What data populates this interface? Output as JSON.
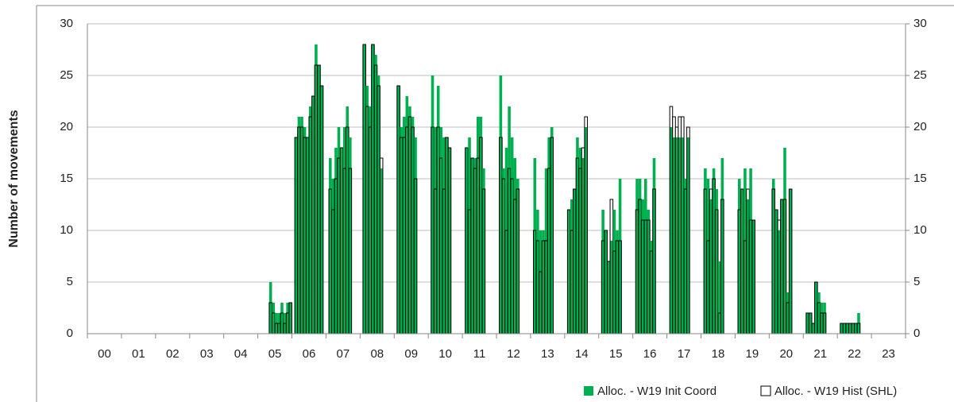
{
  "chart_data": {
    "type": "bar",
    "y_label": "Number of movements",
    "categories": [
      "00",
      "01",
      "02",
      "03",
      "04",
      "05",
      "06",
      "07",
      "08",
      "09",
      "10",
      "11",
      "12",
      "13",
      "14",
      "15",
      "16",
      "17",
      "18",
      "19",
      "20",
      "21",
      "22",
      "23"
    ],
    "ylim": [
      0,
      30
    ],
    "yticks": [
      0,
      5,
      10,
      15,
      20,
      25,
      30
    ],
    "y2lim": [
      0,
      30
    ],
    "y2ticks": [
      0,
      5,
      10,
      15,
      20,
      25,
      30
    ],
    "grid": true,
    "series": [
      {
        "name": "Alloc. - W19 Init Coord",
        "color": "#00b050",
        "values": [
          [
            0,
            0,
            0,
            0,
            0,
            0,
            0,
            0,
            0,
            0,
            0,
            0
          ],
          [
            0,
            0,
            0,
            0,
            0,
            0,
            0,
            0,
            0,
            0,
            0,
            0
          ],
          [
            0,
            0,
            0,
            0,
            0,
            0,
            0,
            0,
            0,
            0,
            0,
            0
          ],
          [
            0,
            0,
            0,
            0,
            0,
            0,
            0,
            0,
            0,
            0,
            0,
            0
          ],
          [
            0,
            0,
            0,
            0,
            0,
            0,
            0,
            0,
            0,
            0,
            0,
            0
          ],
          [
            0,
            0,
            0,
            0,
            5,
            3,
            2,
            2,
            3,
            2,
            3,
            3
          ],
          [
            0,
            19,
            21,
            21,
            20,
            19,
            22,
            23,
            28,
            26,
            24,
            0
          ],
          [
            0,
            17,
            15,
            18,
            20,
            18,
            20,
            22,
            19,
            0,
            0,
            0
          ],
          [
            0,
            28,
            24,
            22,
            28,
            27,
            25,
            16,
            0,
            0,
            0,
            0
          ],
          [
            0,
            24,
            20,
            21,
            23,
            22,
            21,
            19,
            0,
            0,
            0,
            0
          ],
          [
            0,
            25,
            20,
            24,
            20,
            19,
            19,
            18,
            0,
            0,
            0,
            0
          ],
          [
            0,
            18,
            19,
            17,
            17,
            21,
            21,
            16,
            0,
            0,
            0,
            0
          ],
          [
            0,
            25,
            16,
            18,
            22,
            19,
            17,
            15,
            0,
            0,
            0,
            0
          ],
          [
            0,
            17,
            12,
            10,
            10,
            16,
            19,
            20,
            0,
            0,
            0,
            0
          ],
          [
            0,
            12,
            13,
            14,
            19,
            18,
            17,
            20,
            0,
            0,
            0,
            0
          ],
          [
            0,
            12,
            10,
            7,
            9,
            12,
            10,
            15,
            0,
            0,
            0,
            0
          ],
          [
            0,
            15,
            15,
            13,
            15,
            12,
            9,
            17,
            0,
            0,
            0,
            0
          ],
          [
            0,
            20,
            19,
            19,
            19,
            19,
            15,
            19,
            0,
            0,
            0,
            0
          ],
          [
            0,
            16,
            15,
            13,
            16,
            14,
            7,
            17,
            0,
            0,
            0,
            0
          ],
          [
            0,
            15,
            14,
            16,
            13,
            16,
            11,
            0,
            0,
            0,
            0,
            0
          ],
          [
            0,
            15,
            12,
            10,
            13,
            18,
            4,
            14,
            0,
            0,
            0,
            0
          ],
          [
            0,
            2,
            2,
            1,
            5,
            4,
            3,
            3,
            0,
            0,
            0,
            0
          ],
          [
            0,
            1,
            1,
            1,
            1,
            1,
            1,
            2,
            0,
            0,
            0,
            0
          ],
          [
            0,
            0,
            0,
            0,
            0,
            0,
            0,
            0,
            0,
            0,
            0,
            0
          ]
        ]
      },
      {
        "name": "Alloc. - W19 Hist (SHL)",
        "color": "#ffffff",
        "values": [
          [
            0,
            0,
            0,
            0,
            0,
            0,
            0,
            0,
            0,
            0,
            0,
            0
          ],
          [
            0,
            0,
            0,
            0,
            0,
            0,
            0,
            0,
            0,
            0,
            0,
            0
          ],
          [
            0,
            0,
            0,
            0,
            0,
            0,
            0,
            0,
            0,
            0,
            0,
            0
          ],
          [
            0,
            0,
            0,
            0,
            0,
            0,
            0,
            0,
            0,
            0,
            0,
            0
          ],
          [
            0,
            0,
            0,
            0,
            0,
            0,
            0,
            0,
            0,
            0,
            0,
            0
          ],
          [
            0,
            0,
            0,
            0,
            3,
            2,
            1,
            1,
            2,
            1,
            2,
            3
          ],
          [
            0,
            19,
            20,
            20,
            19,
            19,
            21,
            23,
            26,
            26,
            24,
            0
          ],
          [
            0,
            14,
            12,
            15,
            17,
            18,
            16,
            20,
            16,
            0,
            0,
            0
          ],
          [
            0,
            28,
            22,
            20,
            28,
            26,
            24,
            17,
            0,
            0,
            0,
            0
          ],
          [
            0,
            24,
            19,
            19,
            20,
            21,
            20,
            15,
            0,
            0,
            0,
            0
          ],
          [
            0,
            20,
            14,
            20,
            17,
            14,
            19,
            18,
            0,
            0,
            0,
            0
          ],
          [
            0,
            18,
            12,
            17,
            16,
            17,
            19,
            14,
            0,
            0,
            0,
            0
          ],
          [
            0,
            19,
            15,
            10,
            16,
            15,
            13,
            14,
            0,
            0,
            0,
            0
          ],
          [
            0,
            10,
            9,
            6,
            9,
            9,
            16,
            19,
            0,
            0,
            0,
            0
          ],
          [
            0,
            12,
            10,
            14,
            17,
            16,
            18,
            21,
            0,
            0,
            0,
            0
          ],
          [
            0,
            9,
            10,
            7,
            13,
            8,
            9,
            9,
            0,
            0,
            0,
            0
          ],
          [
            0,
            12,
            13,
            11,
            11,
            11,
            8,
            14,
            0,
            0,
            0,
            0
          ],
          [
            0,
            22,
            21,
            20,
            21,
            21,
            14,
            20,
            0,
            0,
            0,
            0
          ],
          [
            0,
            14,
            9,
            14,
            15,
            12,
            2,
            13,
            0,
            0,
            0,
            0
          ],
          [
            0,
            12,
            14,
            9,
            14,
            11,
            11,
            0,
            0,
            0,
            0,
            0
          ],
          [
            0,
            14,
            12,
            11,
            13,
            13,
            3,
            14,
            0,
            0,
            0,
            0
          ],
          [
            0,
            2,
            2,
            1,
            5,
            3,
            2,
            2,
            0,
            0,
            0,
            0
          ],
          [
            0,
            1,
            1,
            1,
            1,
            1,
            1,
            1,
            0,
            0,
            0,
            0
          ],
          [
            0,
            0,
            0,
            0,
            0,
            0,
            0,
            0,
            0,
            0,
            0,
            0
          ]
        ]
      }
    ]
  }
}
